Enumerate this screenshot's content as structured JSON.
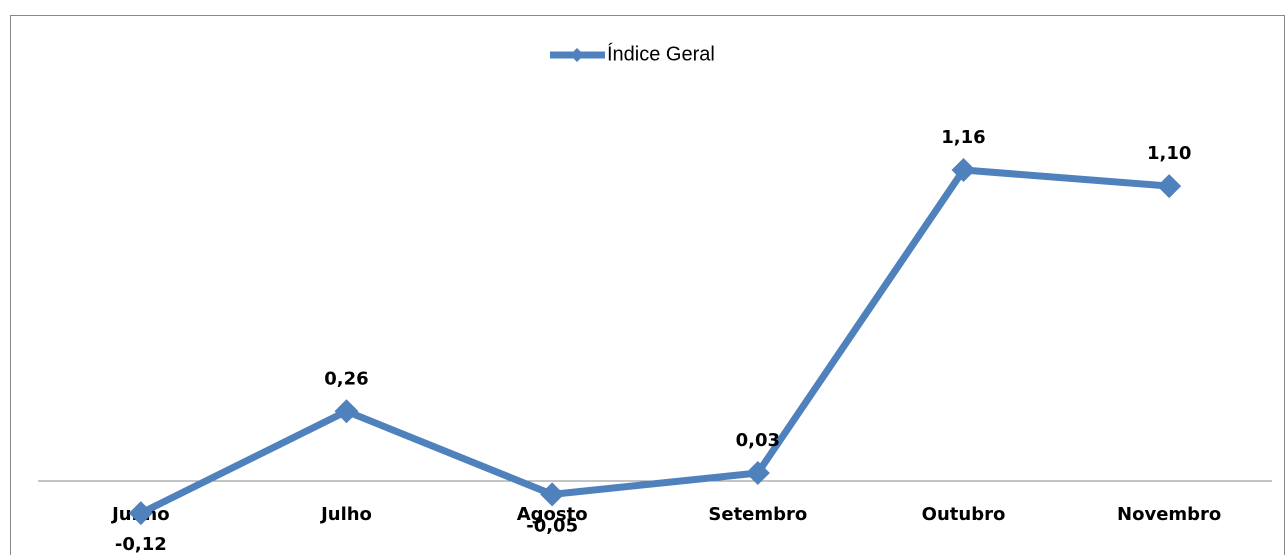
{
  "chart_data": {
    "type": "line",
    "categories": [
      "Junho",
      "Julho",
      "Agosto",
      "Setembro",
      "Outubro",
      "Novembro"
    ],
    "series": [
      {
        "name": "Índice Geral",
        "color": "#4f81bd",
        "values": [
          -0.12,
          0.26,
          -0.05,
          0.03,
          1.16,
          1.1
        ],
        "value_labels": [
          "-0,12",
          "0,26",
          "-0,05",
          "0,03",
          "1,16",
          "1,10"
        ]
      }
    ],
    "legend": "top"
  }
}
